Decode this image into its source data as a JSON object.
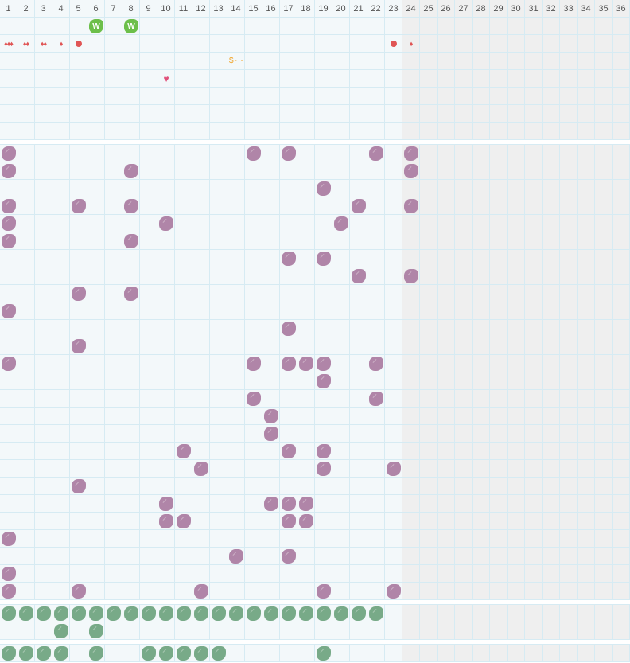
{
  "columns": [
    "1",
    "2",
    "3",
    "4",
    "5",
    "6",
    "7",
    "8",
    "9",
    "10",
    "11",
    "12",
    "13",
    "14",
    "15",
    "16",
    "17",
    "18",
    "19",
    "20",
    "21",
    "22",
    "23",
    "24",
    "25",
    "26",
    "27",
    "28",
    "29",
    "30",
    "31",
    "32",
    "33",
    "34",
    "35",
    "36"
  ],
  "shaded_from_column": 24,
  "colors": {
    "purple": "#b085a8",
    "green": "#78aa88",
    "w_tile": "#6cbf4a",
    "drop": "#e05555",
    "heart": "#e0507a",
    "money": "#f0a020"
  },
  "top_section": {
    "rows": [
      [
        {
          "col": 6,
          "type": "w",
          "text": "W"
        },
        {
          "col": 8,
          "type": "w",
          "text": "W"
        }
      ],
      [
        {
          "col": 1,
          "type": "drops",
          "text": "♦♦♦"
        },
        {
          "col": 2,
          "type": "drops",
          "text": "♦♦"
        },
        {
          "col": 3,
          "type": "drops",
          "text": "♦♦"
        },
        {
          "col": 4,
          "type": "drops",
          "text": "♦"
        },
        {
          "col": 5,
          "type": "dot"
        },
        {
          "col": 23,
          "type": "dot"
        },
        {
          "col": 24,
          "type": "drops",
          "text": "♦"
        }
      ],
      [
        {
          "col": 14,
          "type": "money",
          "text": "$- -"
        }
      ],
      [
        {
          "col": 10,
          "type": "heart",
          "text": "♥"
        }
      ],
      [],
      [],
      []
    ]
  },
  "purple_section": {
    "rows": [
      [
        1,
        15,
        17,
        22,
        24
      ],
      [
        1,
        8,
        24
      ],
      [
        19
      ],
      [
        1,
        5,
        8,
        21,
        24
      ],
      [
        1,
        10,
        20
      ],
      [
        1,
        8
      ],
      [
        17,
        19
      ],
      [
        21,
        24
      ],
      [
        5,
        8
      ],
      [
        1
      ],
      [
        17
      ],
      [
        5
      ],
      [
        1,
        15,
        17,
        18,
        19,
        22
      ],
      [
        19
      ],
      [
        15,
        22
      ],
      [
        16
      ],
      [
        16
      ],
      [
        11,
        17,
        19
      ],
      [
        12,
        19,
        23
      ],
      [
        5
      ],
      [
        10,
        16,
        17,
        18
      ],
      [
        10,
        11,
        17,
        18
      ],
      [
        1
      ],
      [
        14,
        17
      ],
      [
        1
      ],
      [
        1,
        5,
        12,
        19,
        23
      ]
    ]
  },
  "green_section": {
    "rows": [
      [
        1,
        2,
        3,
        4,
        5,
        6,
        7,
        8,
        9,
        10,
        11,
        12,
        13,
        14,
        15,
        16,
        17,
        18,
        19,
        20,
        21,
        22
      ],
      [
        4,
        6
      ]
    ]
  },
  "bottom_section": {
    "rows": [
      [
        1,
        2,
        3,
        4,
        6,
        9,
        10,
        11,
        12,
        13,
        19
      ]
    ]
  }
}
